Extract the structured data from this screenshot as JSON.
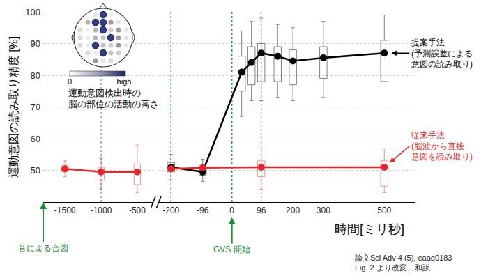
{
  "chart_data": {
    "type": "line",
    "ylabel": "運動意図の読み取り精度 [%]",
    "xlabel": "時間[ミリ秒]",
    "xlim": [
      -1800,
      600
    ],
    "axis_break": [
      -280,
      -240
    ],
    "xticks": [
      -1500,
      -1000,
      -500,
      -200,
      -96,
      0,
      96,
      200,
      300,
      500
    ],
    "ylim": [
      40,
      100
    ],
    "yticks": [
      50,
      60,
      70,
      80,
      90,
      100
    ],
    "grid": true,
    "series": [
      {
        "name": "提案手法\n(予測誤差による\n意図の読み取り)",
        "color": "#000000",
        "marker": "circle",
        "x": [
          -200,
          -96,
          32,
          64,
          96,
          150,
          200,
          300,
          500
        ],
        "values": [
          51,
          49.5,
          81,
          84,
          87,
          86,
          84.5,
          85.5,
          87
        ],
        "boxes": [
          {
            "q1": 49.5,
            "median": 51,
            "q3": 52.5,
            "lower": 47,
            "upper": 55
          },
          {
            "q1": 48.5,
            "median": 49.5,
            "q3": 51,
            "lower": 46.5,
            "upper": 53.5
          },
          {
            "q1": 75,
            "median": 81,
            "q3": 86,
            "lower": 67,
            "upper": 94
          },
          {
            "q1": 77,
            "median": 84,
            "q3": 89,
            "lower": 72,
            "upper": 97
          },
          {
            "q1": 78,
            "median": 87,
            "q3": 90,
            "lower": 72,
            "upper": 98
          },
          {
            "q1": 78,
            "median": 86,
            "q3": 89,
            "lower": 73,
            "upper": 96
          },
          {
            "q1": 77,
            "median": 84.5,
            "q3": 88,
            "lower": 72,
            "upper": 95
          },
          {
            "q1": 79,
            "median": 85.5,
            "q3": 89,
            "lower": 73,
            "upper": 97
          },
          {
            "q1": 78,
            "median": 87,
            "q3": 91,
            "lower": 78,
            "upper": 99
          }
        ]
      },
      {
        "name": "従来手法\n(脳波から直接\n意図を読み取り)",
        "color": "#e8262a",
        "marker": "circle",
        "x": [
          -1500,
          -1000,
          -500,
          -200,
          -96,
          96,
          500
        ],
        "values": [
          50.5,
          49.5,
          49.5,
          50.5,
          50.8,
          51,
          51
        ],
        "boxes": [
          {
            "q1": 49.5,
            "median": 50.5,
            "q3": 51.5,
            "lower": 48,
            "upper": 53
          },
          {
            "q1": 47,
            "median": 49.5,
            "q3": 51,
            "lower": 44,
            "upper": 54
          },
          {
            "q1": 45.5,
            "median": 49.5,
            "q3": 52,
            "lower": 43,
            "upper": 58
          },
          null,
          null,
          {
            "q1": 48,
            "median": 51,
            "q3": 53,
            "lower": 44,
            "upper": 57
          },
          {
            "q1": 45,
            "median": 51,
            "q3": 53,
            "lower": 43,
            "upper": 56.5
          }
        ]
      }
    ],
    "vlines": [
      {
        "x": -1000,
        "color": "#9e9e9e"
      },
      {
        "x": -200,
        "color": "#2e9a44"
      },
      {
        "x": 0,
        "color": "#2e9a44"
      },
      {
        "x": 96,
        "color": "#9e9e9e"
      }
    ],
    "annotations": [
      {
        "text": "音による合図",
        "x": -1800,
        "color": "#1e8a3c"
      },
      {
        "text": "GVS 開始",
        "x": 0,
        "color": "#1e8a3c"
      }
    ],
    "inset": {
      "caption": "運動意図検出時の\n脳の部位の活動の高さ",
      "scale_min": 0,
      "scale_max_label": "high"
    },
    "source": "論文Sci Adv 4 (5), eaaq0183\nFig. 2 より改変、和訳"
  }
}
